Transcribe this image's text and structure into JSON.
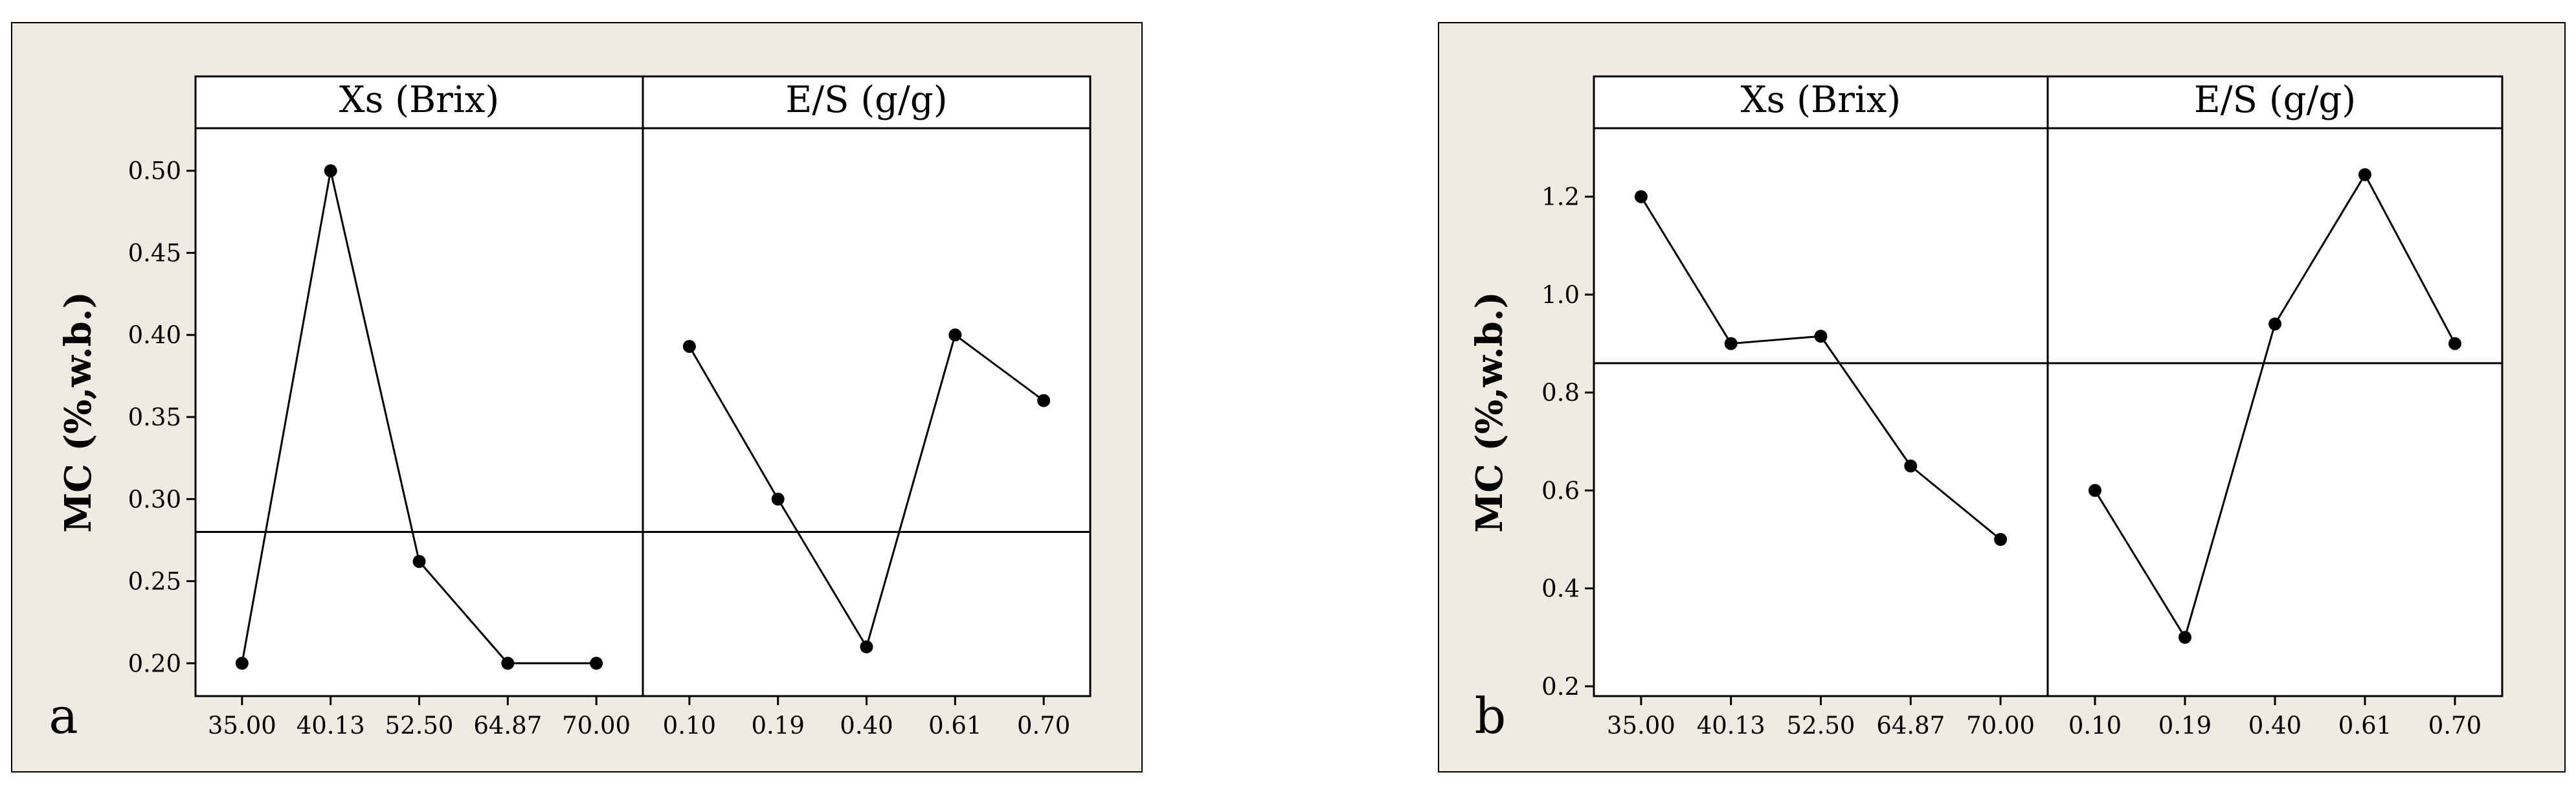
{
  "colors": {
    "panel_background": "#efebe0",
    "plot_background": "#ffffff",
    "line": "#000000"
  },
  "chart_data": [
    {
      "type": "line",
      "panel_label": "a",
      "ylabel": "MC (%,w.b.)",
      "ylim": [
        0.18,
        0.52
      ],
      "yticks": [
        0.2,
        0.25,
        0.3,
        0.35,
        0.4,
        0.45,
        0.5
      ],
      "ytick_labels": [
        "0.20",
        "0.25",
        "0.30",
        "0.35",
        "0.40",
        "0.45",
        "0.50"
      ],
      "mean_line": 0.28,
      "grid": false,
      "facets": [
        {
          "label": "Xs (Brix)",
          "categories": [
            "35.00",
            "40.13",
            "52.50",
            "64.87",
            "70.00"
          ],
          "values": [
            0.2,
            0.5,
            0.262,
            0.2,
            0.2
          ]
        },
        {
          "label": "E/S (g/g)",
          "categories": [
            "0.10",
            "0.19",
            "0.40",
            "0.61",
            "0.70"
          ],
          "values": [
            0.393,
            0.3,
            0.21,
            0.4,
            0.36
          ]
        }
      ]
    },
    {
      "type": "line",
      "panel_label": "b",
      "ylabel": "MC (%,w.b.)",
      "ylim": [
        0.18,
        1.32
      ],
      "yticks": [
        0.2,
        0.4,
        0.6,
        0.8,
        1.0,
        1.2
      ],
      "ytick_labels": [
        "0.2",
        "0.4",
        "0.6",
        "0.8",
        "1.0",
        "1.2"
      ],
      "mean_line": 0.86,
      "grid": false,
      "facets": [
        {
          "label": "Xs (Brix)",
          "categories": [
            "35.00",
            "40.13",
            "52.50",
            "64.87",
            "70.00"
          ],
          "values": [
            1.2,
            0.9,
            0.915,
            0.65,
            0.5
          ]
        },
        {
          "label": "E/S (g/g)",
          "categories": [
            "0.10",
            "0.19",
            "0.40",
            "0.61",
            "0.70"
          ],
          "values": [
            0.6,
            0.3,
            0.94,
            1.245,
            0.9
          ]
        }
      ]
    }
  ]
}
